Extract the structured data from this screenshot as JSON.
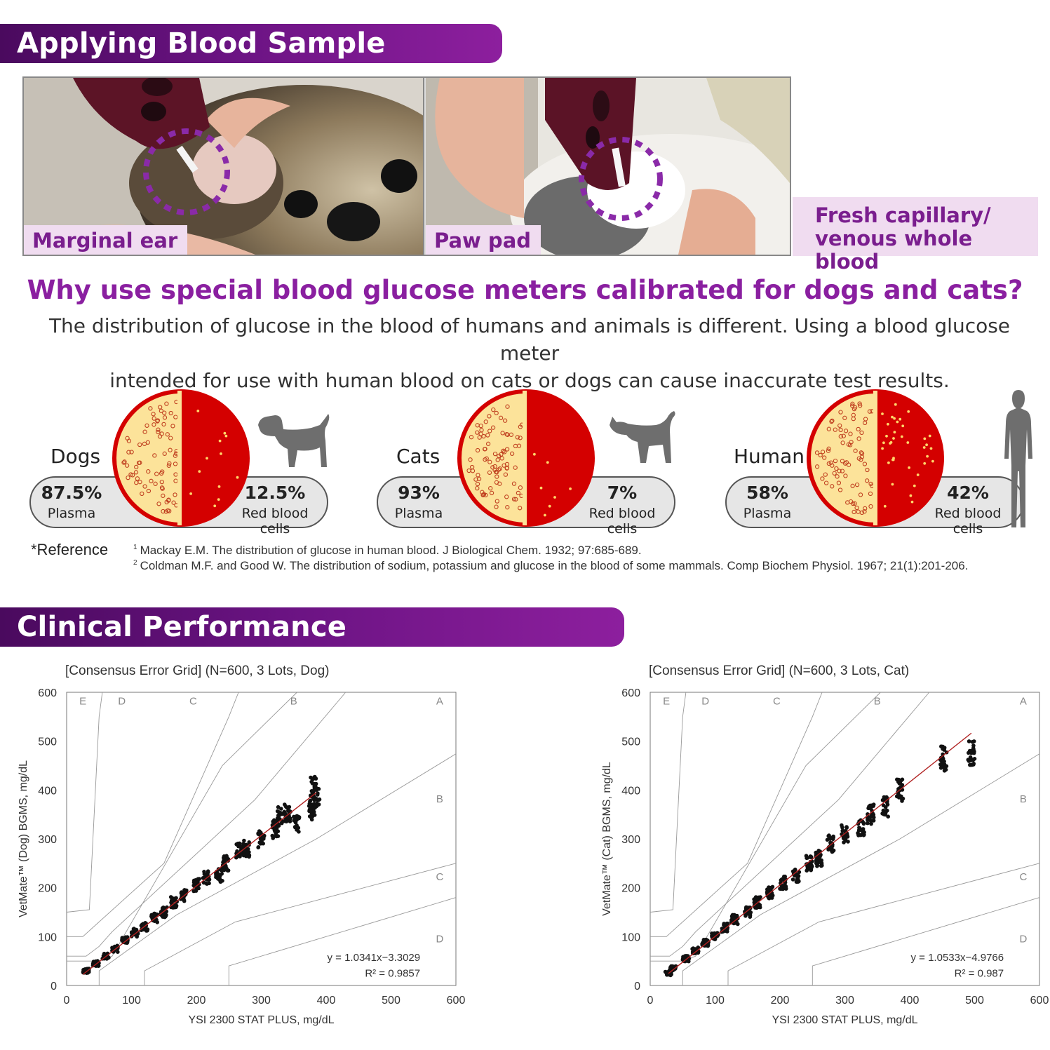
{
  "sections": {
    "applying_title": "Applying Blood Sample",
    "clinical_title": "Clinical Performance"
  },
  "photos": {
    "ear_label": "Marginal ear",
    "paw_label": "Paw pad",
    "sample_line1": "Fresh capillary/",
    "sample_line2": "venous whole blood"
  },
  "why": {
    "heading": "Why use special blood glucose meters calibrated for dogs and cats?",
    "line1": "The distribution of glucose in the blood of humans and animals is different. Using a blood glucose meter",
    "line2": "intended for use with human blood on cats or dogs can cause inaccurate test results."
  },
  "distribution": [
    {
      "name": "Dogs",
      "plasma_pct": "87.5%",
      "plasma_label": "Plasma",
      "rbc_pct": "12.5%",
      "rbc_label": "Red blood cells",
      "plasma_value": 87.5,
      "rbc_value": 12.5
    },
    {
      "name": "Cats",
      "plasma_pct": "93%",
      "plasma_label": "Plasma",
      "rbc_pct": "7%",
      "rbc_label": "Red blood cells",
      "plasma_value": 93,
      "rbc_value": 7
    },
    {
      "name": "Human",
      "plasma_pct": "58%",
      "plasma_label": "Plasma",
      "rbc_pct": "42%",
      "rbc_label": "Red blood cells",
      "plasma_value": 58,
      "rbc_value": 42
    }
  ],
  "reference": {
    "label": "*Reference",
    "ref1_num": "1",
    "ref1": "Mackay E.M. The distribution of glucose in human blood. J Biological Chem. 1932; 97:685-689.",
    "ref2_num": "2",
    "ref2": "Coldman M.F. and Good W. The distribution of sodium, potassium and glucose in the blood of some mammals. Comp Biochem Physiol. 1967; 21(1):201-206."
  },
  "colors": {
    "purple_dark": "#4a0a5e",
    "purple_accent": "#8a1fa0",
    "label_bg": "#f0dcf0",
    "plasma": "#fce39a",
    "rbc": "#d40000",
    "silhouette": "#6e6e6e",
    "regression": "#b02020"
  },
  "chart_data": [
    {
      "type": "scatter",
      "title": "[Consensus Error Grid] (N=600, 3 Lots, Dog)",
      "xlabel": "YSI 2300 STAT PLUS, mg/dL",
      "ylabel": "VetMate™ (Dog) BGMS, mg/dL",
      "xlim": [
        0,
        600
      ],
      "ylim": [
        0,
        600
      ],
      "xticks": [
        0,
        100,
        200,
        300,
        400,
        500,
        600
      ],
      "yticks": [
        0,
        100,
        200,
        300,
        400,
        500,
        600
      ],
      "zones": [
        "A",
        "B",
        "C",
        "D",
        "E"
      ],
      "regression": {
        "slope": 1.0341,
        "intercept": -3.3029,
        "r2": 0.9857,
        "x_range": [
          25,
          385
        ]
      },
      "equation": "y = 1.0341x−3.3029",
      "r2_label": "R² = 0.9857",
      "x_min": 25,
      "x_max": 385,
      "n_points": 600,
      "spread": 0.045,
      "clusters": [
        [
          385,
          385
        ],
        [
          380,
          405
        ],
        [
          378,
          360
        ],
        [
          355,
          330
        ],
        [
          340,
          355
        ],
        [
          328,
          345
        ],
        [
          322,
          320
        ],
        [
          300,
          300
        ],
        [
          277,
          280
        ],
        [
          265,
          275
        ],
        [
          245,
          250
        ],
        [
          235,
          225
        ],
        [
          215,
          220
        ],
        [
          200,
          205
        ],
        [
          180,
          185
        ],
        [
          165,
          170
        ],
        [
          150,
          150
        ],
        [
          135,
          138
        ],
        [
          120,
          120
        ],
        [
          105,
          108
        ],
        [
          90,
          92
        ],
        [
          75,
          75
        ],
        [
          60,
          60
        ],
        [
          45,
          45
        ],
        [
          30,
          30
        ]
      ]
    },
    {
      "type": "scatter",
      "title": "[Consensus Error Grid] (N=600, 3 Lots, Cat)",
      "xlabel": "YSI 2300 STAT PLUS, mg/dL",
      "ylabel": "VetMate™ (Cat) BGMS, mg/dL",
      "xlim": [
        0,
        600
      ],
      "ylim": [
        0,
        600
      ],
      "xticks": [
        0,
        100,
        200,
        300,
        400,
        500,
        600
      ],
      "yticks": [
        0,
        100,
        200,
        300,
        400,
        500,
        600
      ],
      "zones": [
        "A",
        "B",
        "C",
        "D",
        "E"
      ],
      "regression": {
        "slope": 1.0533,
        "intercept": -4.9766,
        "r2": 0.987,
        "x_range": [
          28,
          495
        ]
      },
      "equation": "y = 1.0533x−4.9766",
      "r2_label": "R² = 0.987",
      "x_min": 25,
      "x_max": 495,
      "n_points": 600,
      "spread": 0.045,
      "clusters": [
        [
          495,
          475
        ],
        [
          452,
          465
        ],
        [
          385,
          400
        ],
        [
          362,
          365
        ],
        [
          340,
          350
        ],
        [
          325,
          320
        ],
        [
          300,
          310
        ],
        [
          278,
          290
        ],
        [
          260,
          260
        ],
        [
          245,
          250
        ],
        [
          225,
          225
        ],
        [
          205,
          210
        ],
        [
          185,
          190
        ],
        [
          165,
          170
        ],
        [
          150,
          150
        ],
        [
          130,
          135
        ],
        [
          115,
          118
        ],
        [
          100,
          102
        ],
        [
          85,
          88
        ],
        [
          70,
          72
        ],
        [
          55,
          55
        ],
        [
          35,
          35
        ],
        [
          28,
          25
        ]
      ]
    }
  ]
}
